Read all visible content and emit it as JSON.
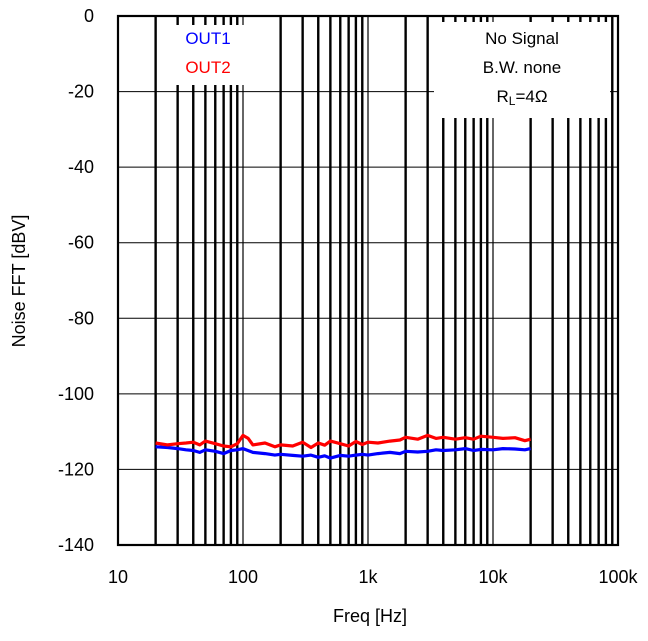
{
  "chart_data": {
    "type": "line",
    "xlabel": "Freq [Hz]",
    "ylabel": "Noise FFT [dBV]",
    "x_scale": "log",
    "xlim": [
      10,
      100000
    ],
    "ylim": [
      -140,
      0
    ],
    "x_ticks": [
      10,
      100,
      1000,
      10000,
      100000
    ],
    "x_tick_labels": [
      "10",
      "100",
      "1k",
      "10k",
      "100k"
    ],
    "y_ticks": [
      0,
      -20,
      -40,
      -60,
      -80,
      -100,
      -120,
      -140
    ],
    "y_tick_labels": [
      "0",
      "-20",
      "-40",
      "-60",
      "-80",
      "-100",
      "-120",
      "-140"
    ],
    "grid": true,
    "legend_position": "top-left",
    "annotation": {
      "line1": "No Signal",
      "line2": "B.W. none",
      "line3_main": "R",
      "line3_sub": "L",
      "line3_rest": "=4Ω"
    },
    "series": [
      {
        "name": "OUT1",
        "color": "#0000ff",
        "x": [
          20,
          25,
          30,
          35,
          40,
          45,
          50,
          60,
          70,
          80,
          90,
          100,
          120,
          150,
          180,
          200,
          250,
          300,
          350,
          400,
          450,
          500,
          600,
          700,
          800,
          900,
          1000,
          1200,
          1500,
          1800,
          2000,
          2500,
          3000,
          3500,
          4000,
          5000,
          6000,
          7000,
          8000,
          10000,
          12000,
          15000,
          18000,
          20000
        ],
        "y": [
          -114,
          -114.2,
          -114.5,
          -114.8,
          -115,
          -115.5,
          -114.8,
          -115.2,
          -115.8,
          -115,
          -114.8,
          -114.5,
          -115.5,
          -115.8,
          -116.2,
          -116,
          -116.3,
          -116.5,
          -116.2,
          -116.8,
          -116.4,
          -117,
          -116.3,
          -116.5,
          -116.2,
          -116,
          -116.2,
          -115.8,
          -115.5,
          -115.8,
          -115.2,
          -115.4,
          -115.2,
          -114.8,
          -115,
          -114.8,
          -114.5,
          -115,
          -114.7,
          -114.8,
          -114.5,
          -114.6,
          -114.8,
          -114.5
        ]
      },
      {
        "name": "OUT2",
        "color": "#ff0000",
        "x": [
          20,
          25,
          30,
          35,
          40,
          45,
          50,
          60,
          70,
          80,
          90,
          100,
          110,
          120,
          150,
          180,
          200,
          250,
          300,
          350,
          400,
          450,
          500,
          600,
          700,
          800,
          900,
          1000,
          1200,
          1500,
          1800,
          2000,
          2500,
          3000,
          3500,
          4000,
          5000,
          6000,
          7000,
          8000,
          10000,
          12000,
          15000,
          18000,
          20000
        ],
        "y": [
          -113,
          -113.5,
          -113.2,
          -113,
          -112.8,
          -113.5,
          -112.5,
          -113.2,
          -113.8,
          -114,
          -113.2,
          -111,
          -111.8,
          -113.5,
          -113,
          -114,
          -113.5,
          -113.8,
          -112.8,
          -114.2,
          -113,
          -113.6,
          -112.5,
          -113.2,
          -113.8,
          -112.6,
          -113.4,
          -112.8,
          -113,
          -112.5,
          -112.2,
          -111.5,
          -112,
          -111,
          -111.8,
          -111.5,
          -112,
          -111.6,
          -112,
          -111.2,
          -111.5,
          -111.8,
          -111.6,
          -112.4,
          -112
        ]
      }
    ]
  }
}
